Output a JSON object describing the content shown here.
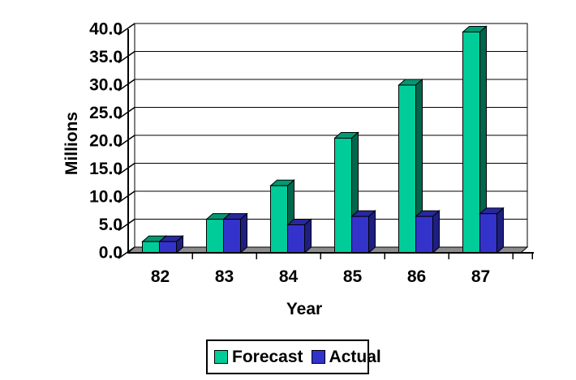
{
  "chart_data": {
    "type": "bar",
    "style": "3d-column",
    "title": "",
    "xlabel": "Year",
    "ylabel": "Millions",
    "categories": [
      "82",
      "83",
      "84",
      "85",
      "86",
      "87"
    ],
    "series": [
      {
        "name": "Forecast",
        "values": [
          2,
          6,
          12,
          20.5,
          30,
          39.5
        ],
        "color": "#00CC99",
        "color_top": "#009973",
        "color_side": "#00664D"
      },
      {
        "name": "Actual",
        "values": [
          2,
          6,
          5,
          6.5,
          6.5,
          7
        ],
        "color": "#3333CC",
        "color_top": "#28289E",
        "color_side": "#1F1F80"
      }
    ],
    "ylim": [
      0,
      40
    ],
    "ytick_step": 5,
    "ytick_labels": [
      "0.0",
      "5.0",
      "10.0",
      "15.0",
      "20.0",
      "25.0",
      "30.0",
      "35.0",
      "40.0"
    ],
    "grid": true,
    "legend_position": "bottom",
    "wall_color": "#FFFFFF",
    "floor_color": "#8C8C8C",
    "axis_color": "#000000",
    "gridline_color": "#000000"
  }
}
